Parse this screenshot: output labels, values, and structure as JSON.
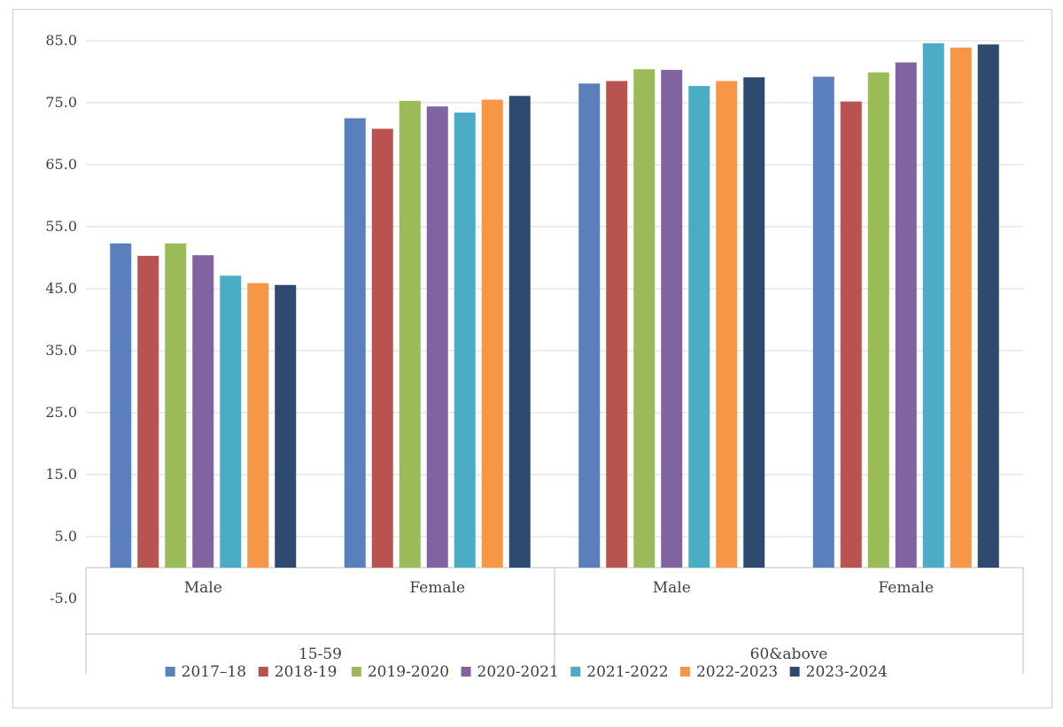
{
  "chart_data": {
    "type": "bar",
    "groups": [
      {
        "label": "15-59",
        "categories": [
          "Male",
          "Female"
        ]
      },
      {
        "label": "60&above",
        "categories": [
          "Male",
          "Female"
        ]
      }
    ],
    "categories": [
      "Male",
      "Female",
      "Male",
      "Female"
    ],
    "series": [
      {
        "name": "2017–18",
        "color": "#5b7fbc",
        "values": [
          52.3,
          72.5,
          78.1,
          79.2
        ]
      },
      {
        "name": "2018-19",
        "color": "#b8534f",
        "values": [
          50.3,
          70.8,
          78.5,
          75.2
        ]
      },
      {
        "name": "2019-2020",
        "color": "#9bbb59",
        "values": [
          52.3,
          75.3,
          80.4,
          79.9
        ]
      },
      {
        "name": "2020-2021",
        "color": "#8064a2",
        "values": [
          50.4,
          74.4,
          80.3,
          81.5
        ]
      },
      {
        "name": "2021-2022",
        "color": "#4bacc6",
        "values": [
          47.1,
          73.4,
          77.7,
          84.6
        ]
      },
      {
        "name": "2022-2023",
        "color": "#f79646",
        "values": [
          45.9,
          75.5,
          78.5,
          83.9
        ]
      },
      {
        "name": "2023-2024",
        "color": "#2f4a6f",
        "values": [
          45.6,
          76.1,
          79.1,
          84.4
        ]
      }
    ],
    "yticks": [
      "85.0",
      "75.0",
      "65.0",
      "55.0",
      "45.0",
      "35.0",
      "25.0",
      "15.0",
      "5.0",
      "-5.0"
    ],
    "ylim": [
      -5,
      85
    ],
    "grid": true,
    "legend_position": "bottom"
  }
}
